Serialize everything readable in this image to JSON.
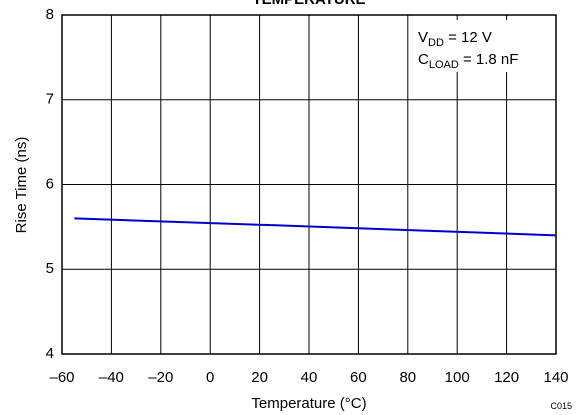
{
  "chart_data": {
    "type": "line",
    "title": "TEMPERATURE",
    "x_label": "Temperature (°C)",
    "y_label": "Rise Time (ns)",
    "x": [
      -55,
      25,
      140
    ],
    "series": [
      {
        "name": "Rise Time",
        "color": "#0000cc",
        "values": [
          5.6,
          5.52,
          5.4
        ]
      }
    ],
    "xlim": [
      -60,
      140
    ],
    "xticks": [
      {
        "value": -60,
        "label": "–60"
      },
      {
        "value": -40,
        "label": "–40"
      },
      {
        "value": -20,
        "label": "–20"
      },
      0,
      20,
      40,
      60,
      80,
      100,
      120,
      140
    ],
    "ylim": [
      4,
      8
    ],
    "yticks": [
      4,
      5,
      6,
      7,
      8
    ],
    "grid": true,
    "annotations": [
      {
        "main": "V",
        "sub": "DD",
        "rest": " = 12 V"
      },
      {
        "main": "C",
        "sub": "LOAD",
        "rest": " = 1.8 nF"
      }
    ],
    "code": "C015"
  }
}
